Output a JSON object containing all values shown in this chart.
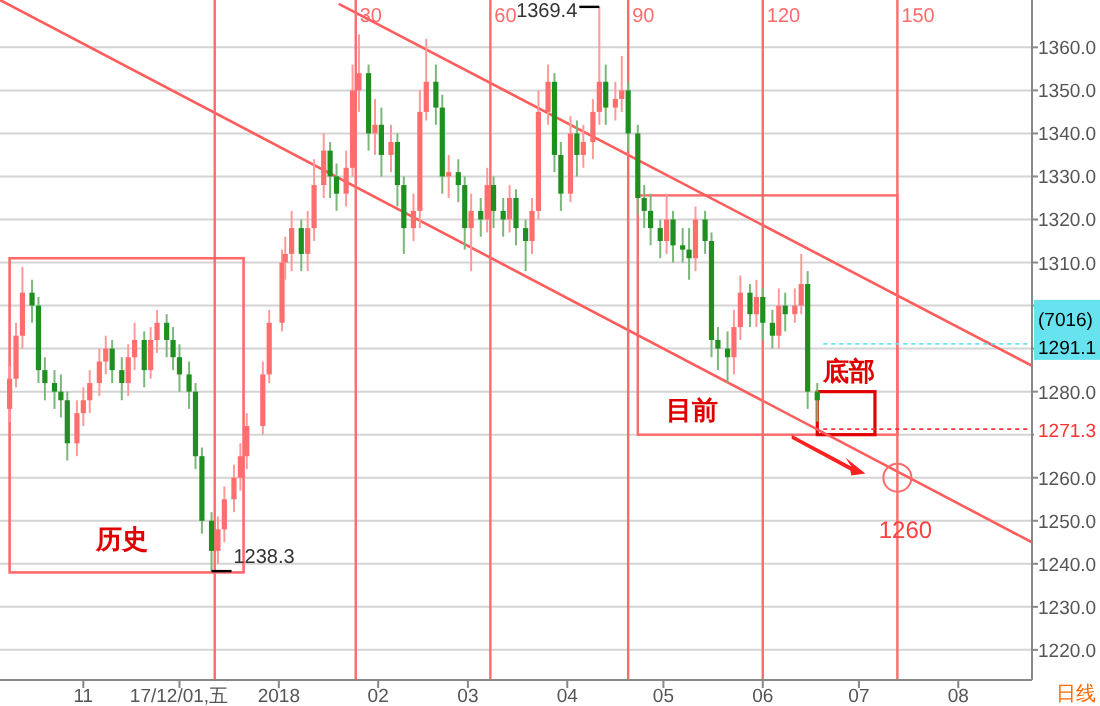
{
  "chart_data": {
    "type": "candlestick",
    "x": [
      "2017-10-09",
      "2017-10-11",
      "2017-10-13",
      "2017-10-16",
      "2017-10-18",
      "2017-10-20",
      "2017-10-23",
      "2017-10-25",
      "2017-10-27",
      "2017-10-30",
      "2017-11-01",
      "2017-11-03",
      "2017-11-06",
      "2017-11-08",
      "2017-11-10",
      "2017-11-13",
      "2017-11-15",
      "2017-11-17",
      "2017-11-20",
      "2017-11-22",
      "2017-11-24",
      "2017-11-27",
      "2017-11-29",
      "2017-12-01",
      "2017-12-04",
      "2017-12-06",
      "2017-12-08",
      "2017-12-11",
      "2017-12-13",
      "2017-12-15",
      "2017-12-18",
      "2017-12-20",
      "2017-12-22",
      "2017-12-27",
      "2017-12-29",
      "2018-01-02",
      "2018-01-03",
      "2018-01-05",
      "2018-01-08",
      "2018-01-10",
      "2018-01-12",
      "2018-01-15",
      "2018-01-17",
      "2018-01-19",
      "2018-01-22",
      "2018-01-24",
      "2018-01-26",
      "2018-01-29",
      "2018-01-31",
      "2018-02-02",
      "2018-02-05",
      "2018-02-07",
      "2018-02-09",
      "2018-02-12",
      "2018-02-14",
      "2018-02-16",
      "2018-02-19",
      "2018-02-21",
      "2018-02-23",
      "2018-02-26",
      "2018-02-28",
      "2018-03-02",
      "2018-03-05",
      "2018-03-07",
      "2018-03-09",
      "2018-03-12",
      "2018-03-14",
      "2018-03-16",
      "2018-03-19",
      "2018-03-21",
      "2018-03-23",
      "2018-03-26",
      "2018-03-28",
      "2018-03-30",
      "2018-04-02",
      "2018-04-04",
      "2018-04-06",
      "2018-04-09",
      "2018-04-11",
      "2018-04-13",
      "2018-04-16",
      "2018-04-18",
      "2018-04-20",
      "2018-04-23",
      "2018-04-25",
      "2018-04-27",
      "2018-04-30",
      "2018-05-02",
      "2018-05-04",
      "2018-05-07",
      "2018-05-09",
      "2018-05-11",
      "2018-05-14",
      "2018-05-16",
      "2018-05-18",
      "2018-05-21",
      "2018-05-23",
      "2018-05-25",
      "2018-05-28",
      "2018-05-30",
      "2018-06-01",
      "2018-06-04",
      "2018-06-06",
      "2018-06-08",
      "2018-06-11",
      "2018-06-13",
      "2018-06-15",
      "2018-06-18"
    ],
    "ohlc": [
      [
        1276,
        1286,
        1273,
        1283
      ],
      [
        1283,
        1296,
        1281,
        1293
      ],
      [
        1293,
        1309,
        1290,
        1303
      ],
      [
        1303,
        1306,
        1296,
        1300
      ],
      [
        1300,
        1302,
        1282,
        1285
      ],
      [
        1285,
        1288,
        1278,
        1282
      ],
      [
        1282,
        1285,
        1276,
        1280
      ],
      [
        1280,
        1284,
        1274,
        1278
      ],
      [
        1278,
        1280,
        1264,
        1268
      ],
      [
        1268,
        1278,
        1265,
        1275
      ],
      [
        1275,
        1281,
        1272,
        1278
      ],
      [
        1278,
        1285,
        1275,
        1282
      ],
      [
        1282,
        1290,
        1279,
        1287
      ],
      [
        1287,
        1293,
        1284,
        1290
      ],
      [
        1290,
        1292,
        1282,
        1285
      ],
      [
        1285,
        1288,
        1278,
        1282
      ],
      [
        1282,
        1291,
        1279,
        1288
      ],
      [
        1288,
        1296,
        1285,
        1292
      ],
      [
        1292,
        1294,
        1281,
        1285
      ],
      [
        1285,
        1295,
        1283,
        1292
      ],
      [
        1292,
        1299,
        1289,
        1296
      ],
      [
        1296,
        1298,
        1288,
        1292
      ],
      [
        1292,
        1295,
        1285,
        1288
      ],
      [
        1288,
        1291,
        1280,
        1284
      ],
      [
        1284,
        1287,
        1276,
        1280
      ],
      [
        1280,
        1282,
        1262,
        1265
      ],
      [
        1265,
        1267,
        1247,
        1250
      ],
      [
        1250,
        1252,
        1238.3,
        1243
      ],
      [
        1243,
        1251,
        1240,
        1248
      ],
      [
        1248,
        1258,
        1245,
        1255
      ],
      [
        1255,
        1263,
        1252,
        1260
      ],
      [
        1260,
        1268,
        1257,
        1265
      ],
      [
        1265,
        1275,
        1262,
        1272
      ],
      [
        1272,
        1287,
        1270,
        1284
      ],
      [
        1284,
        1299,
        1282,
        1296
      ],
      [
        1296,
        1313,
        1294,
        1310
      ],
      [
        1310,
        1316,
        1306,
        1312
      ],
      [
        1312,
        1322,
        1308,
        1318
      ],
      [
        1318,
        1320,
        1308,
        1312
      ],
      [
        1312,
        1322,
        1308,
        1318
      ],
      [
        1318,
        1334,
        1315,
        1328
      ],
      [
        1328,
        1340,
        1325,
        1336
      ],
      [
        1336,
        1338,
        1325,
        1330
      ],
      [
        1330,
        1333,
        1322,
        1326
      ],
      [
        1326,
        1336,
        1323,
        1332
      ],
      [
        1332,
        1356,
        1330,
        1350
      ],
      [
        1350,
        1363,
        1345,
        1354
      ],
      [
        1354,
        1356,
        1336,
        1340
      ],
      [
        1340,
        1348,
        1335,
        1342
      ],
      [
        1342,
        1346,
        1330,
        1335
      ],
      [
        1335,
        1342,
        1331,
        1338
      ],
      [
        1338,
        1340,
        1323,
        1328
      ],
      [
        1328,
        1330,
        1312,
        1318
      ],
      [
        1318,
        1326,
        1315,
        1322
      ],
      [
        1322,
        1350,
        1318,
        1345
      ],
      [
        1345,
        1362,
        1343,
        1352
      ],
      [
        1352,
        1356,
        1342,
        1346
      ],
      [
        1346,
        1349,
        1326,
        1330
      ],
      [
        1330,
        1335,
        1325,
        1331
      ],
      [
        1331,
        1334,
        1324,
        1328
      ],
      [
        1328,
        1330,
        1313,
        1318
      ],
      [
        1318,
        1326,
        1308,
        1322
      ],
      [
        1322,
        1325,
        1316,
        1320
      ],
      [
        1320,
        1332,
        1317,
        1328
      ],
      [
        1328,
        1330,
        1318,
        1322
      ],
      [
        1322,
        1325,
        1316,
        1320
      ],
      [
        1320,
        1328,
        1317,
        1325
      ],
      [
        1325,
        1327,
        1314,
        1318
      ],
      [
        1318,
        1320,
        1308,
        1315
      ],
      [
        1315,
        1325,
        1312,
        1322
      ],
      [
        1322,
        1350,
        1320,
        1345
      ],
      [
        1345,
        1356,
        1342,
        1352
      ],
      [
        1352,
        1354,
        1331,
        1335
      ],
      [
        1335,
        1338,
        1322,
        1326
      ],
      [
        1326,
        1344,
        1324,
        1340
      ],
      [
        1340,
        1343,
        1330,
        1335
      ],
      [
        1335,
        1342,
        1332,
        1338
      ],
      [
        1338,
        1348,
        1334,
        1345
      ],
      [
        1345,
        1369.4,
        1342,
        1352
      ],
      [
        1352,
        1356,
        1342,
        1346
      ],
      [
        1346,
        1352,
        1343,
        1348
      ],
      [
        1348,
        1358,
        1345,
        1350
      ],
      [
        1350,
        1352,
        1336,
        1340
      ],
      [
        1340,
        1342,
        1321,
        1325
      ],
      [
        1325,
        1328,
        1318,
        1322
      ],
      [
        1322,
        1326,
        1314,
        1318
      ],
      [
        1318,
        1320,
        1311,
        1315
      ],
      [
        1315,
        1326,
        1312,
        1320
      ],
      [
        1320,
        1322,
        1310,
        1314
      ],
      [
        1314,
        1318,
        1310,
        1313
      ],
      [
        1313,
        1318,
        1306,
        1311
      ],
      [
        1311,
        1323,
        1308,
        1320
      ],
      [
        1320,
        1322,
        1312,
        1315
      ],
      [
        1315,
        1317,
        1288,
        1292
      ],
      [
        1292,
        1295,
        1285,
        1290
      ],
      [
        1290,
        1294,
        1282,
        1288
      ],
      [
        1288,
        1299,
        1284,
        1295
      ],
      [
        1295,
        1307,
        1292,
        1303
      ],
      [
        1303,
        1305,
        1295,
        1298
      ],
      [
        1298,
        1306,
        1295,
        1302
      ],
      [
        1302,
        1304,
        1292,
        1296
      ],
      [
        1296,
        1299,
        1290,
        1293
      ],
      [
        1293,
        1304,
        1290,
        1300
      ],
      [
        1300,
        1303,
        1294,
        1298
      ],
      [
        1298,
        1304,
        1296,
        1300
      ],
      [
        1300,
        1312,
        1298,
        1305
      ],
      [
        1305,
        1308,
        1276,
        1280
      ],
      [
        1280,
        1282,
        1273,
        1278
      ]
    ],
    "xlim": [
      "2017-10-06",
      "2018-08-24"
    ],
    "xticks": [
      {
        "value": "2017-11-01",
        "label": "11"
      },
      {
        "value": "2017-12-01",
        "label": "17/12/01,五"
      },
      {
        "value": "2018-01-01",
        "label": "2018"
      },
      {
        "value": "2018-02-01",
        "label": "02"
      },
      {
        "value": "2018-03-01",
        "label": "03"
      },
      {
        "value": "2018-04-01",
        "label": "04"
      },
      {
        "value": "2018-05-01",
        "label": "05"
      },
      {
        "value": "2018-06-01",
        "label": "06"
      },
      {
        "value": "2018-07-01",
        "label": "07"
      },
      {
        "value": "2018-08-01",
        "label": "08"
      }
    ],
    "ylim": [
      1213,
      1371
    ],
    "yticks": [
      {
        "value": 1220,
        "label": "1220.0"
      },
      {
        "value": 1230,
        "label": "1230.0"
      },
      {
        "value": 1240,
        "label": "1240.0"
      },
      {
        "value": 1250,
        "label": "1250.0"
      },
      {
        "value": 1260,
        "label": "1260.0"
      },
      {
        "value": 1270,
        "label": null
      },
      {
        "value": 1280,
        "label": "1280.0"
      },
      {
        "value": 1290,
        "label": null
      },
      {
        "value": 1300,
        "label": null
      },
      {
        "value": 1310,
        "label": "1310.0"
      },
      {
        "value": 1320,
        "label": "1320.0"
      },
      {
        "value": 1330,
        "label": "1330.0"
      },
      {
        "value": 1340,
        "label": "1340.0"
      },
      {
        "value": 1350,
        "label": "1350.0"
      },
      {
        "value": 1360,
        "label": "1360.0"
      }
    ],
    "grid": "y",
    "series": [
      {
        "type": "line",
        "color": "#ff5c5c",
        "x": [
          "2017-10-06",
          "2018-08-24"
        ],
        "values": [
          1371,
          1245
        ]
      },
      {
        "type": "line",
        "color": "#ff5c5c",
        "x": [
          "2018-01-20",
          "2018-08-24"
        ],
        "values": [
          1370,
          1286
        ]
      }
    ],
    "ref_lines": [
      {
        "axis": "x",
        "value": "2017-12-12",
        "color": "#ff6b6b"
      },
      {
        "axis": "x",
        "value": "2018-01-25",
        "label": "30",
        "color": "#ff6b6b"
      },
      {
        "axis": "x",
        "value": "2018-03-08",
        "label": "60",
        "color": "#ff6b6b"
      },
      {
        "axis": "x",
        "value": "2018-04-20",
        "label": "90",
        "color": "#ff6b6b"
      },
      {
        "axis": "x",
        "value": "2018-06-01",
        "label": "120",
        "color": "#ff6b6b"
      },
      {
        "axis": "x",
        "value": "2018-07-13",
        "label": "150",
        "color": "#ff6b6b"
      },
      {
        "axis": "y",
        "value": 1291.1,
        "label": "1291.1",
        "color": "#66e3ee"
      },
      {
        "axis": "y",
        "value": 1271.3,
        "label": "1271.3",
        "color": "#ff3030"
      }
    ],
    "annotations": [
      {
        "text": "1369.4",
        "x": "2018-04-11",
        "y": 1369.4
      },
      {
        "text": "1238.3",
        "x": "2017-12-11",
        "y": 1238.3
      },
      "历史",
      "目前",
      "底部",
      {
        "text": "1260",
        "x": "2018-07-13",
        "y": 1260
      },
      "(7016)",
      "日线"
    ]
  }
}
